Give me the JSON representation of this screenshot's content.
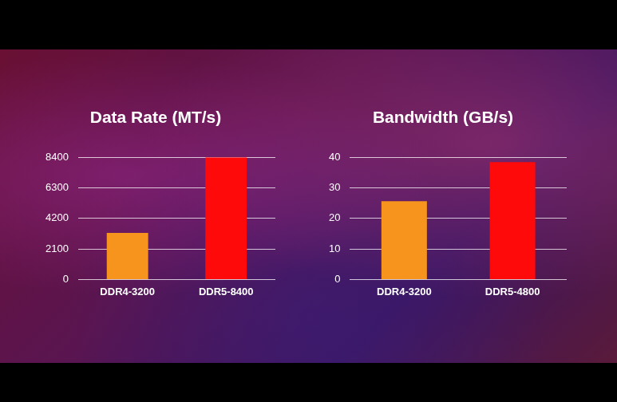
{
  "chart_data": [
    {
      "type": "bar",
      "title": "Data Rate (MT/s)",
      "categories": [
        "DDR4-3200",
        "DDR5-8400"
      ],
      "values": [
        3200,
        8400
      ],
      "colors": [
        "#f7941d",
        "#ff0a0a"
      ],
      "ylim": [
        0,
        8400
      ],
      "yticks": [
        0,
        2100,
        4200,
        6300,
        8400
      ],
      "grid": true
    },
    {
      "type": "bar",
      "title": "Bandwidth (GB/s)",
      "categories": [
        "DDR4-3200",
        "DDR5-4800"
      ],
      "values": [
        25.6,
        38.4
      ],
      "colors": [
        "#f7941d",
        "#ff0a0a"
      ],
      "ylim": [
        0,
        40
      ],
      "yticks": [
        0,
        10,
        20,
        30,
        40
      ],
      "grid": true
    }
  ]
}
